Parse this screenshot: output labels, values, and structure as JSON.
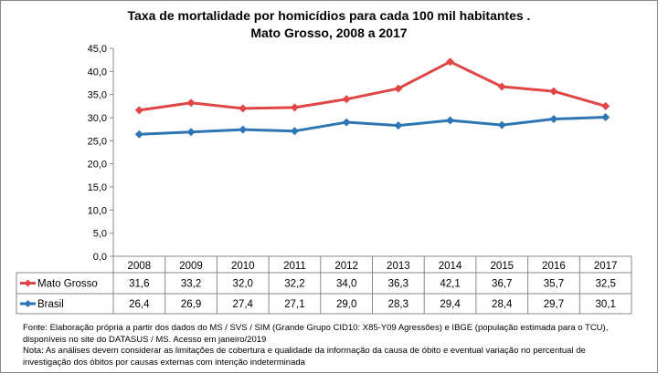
{
  "title_line1": "Taxa de mortalidade por homicídios para cada 100 mil habitantes .",
  "title_line2": "Mato Grosso, 2008 a 2017",
  "chart_data": {
    "type": "line",
    "title": "Taxa de mortalidade por homicídios para cada 100 mil habitantes . Mato Grosso, 2008 a 2017",
    "categories": [
      "2008",
      "2009",
      "2010",
      "2011",
      "2012",
      "2013",
      "2014",
      "2015",
      "2016",
      "2017"
    ],
    "ylim": [
      0,
      45
    ],
    "yticks": [
      "0,0",
      "5,0",
      "10,0",
      "15,0",
      "20,0",
      "25,0",
      "30,0",
      "35,0",
      "40,0",
      "45,0"
    ],
    "grid": false,
    "legend": "data-table",
    "series": [
      {
        "name": "Mato Grosso",
        "color": "#e04646",
        "values": [
          31.6,
          33.2,
          32.0,
          32.2,
          34.0,
          36.3,
          42.1,
          36.7,
          35.7,
          32.5
        ],
        "labels": [
          "31,6",
          "33,2",
          "32,0",
          "32,2",
          "34,0",
          "36,3",
          "42,1",
          "36,7",
          "35,7",
          "32,5"
        ]
      },
      {
        "name": "Brasil",
        "color": "#2e75b6",
        "values": [
          26.4,
          26.9,
          27.4,
          27.1,
          29.0,
          28.3,
          29.4,
          28.4,
          29.7,
          30.1
        ],
        "labels": [
          "26,4",
          "26,9",
          "27,4",
          "27,1",
          "29,0",
          "28,3",
          "29,4",
          "28,4",
          "29,7",
          "30,1"
        ]
      }
    ]
  },
  "footnote": {
    "line1": "Fonte: Elaboração própria a partir dos dados do MS / SVS / SIM (Grande Grupo CID10: X85-Y09 Agressões) e IBGE (população estimada para o TCU),",
    "line2": "disponíveis no site do DATASUS / MS. Acesso em janeiro/2019",
    "line3": "Nota:  As análises devem considerar as limitações de cobertura e qualidade da informação da causa de óbito e eventual variação no percentual de",
    "line4": "investigação dos óbitos por causas externas com intenção  indeterminada"
  }
}
